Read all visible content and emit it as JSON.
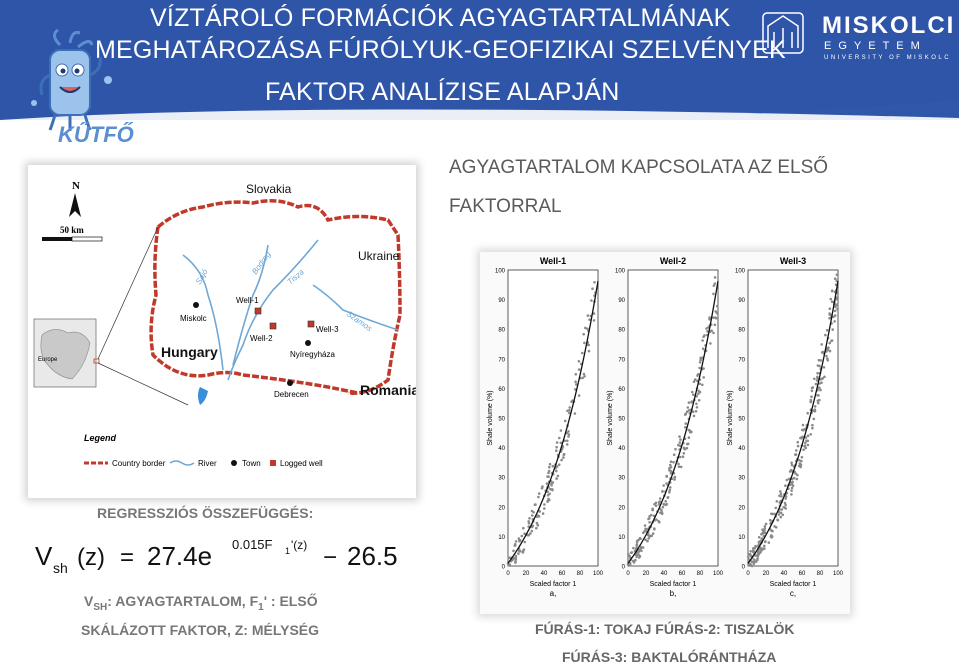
{
  "header": {
    "title_line1": "VÍZTÁROLÓ FORMÁCIÓK AGYAGTARTALMÁNAK",
    "title_line2": "MEGHATÁROZÁSA FÚRÓLYUK-GEOFIZIKAI SZELVÉNYEK",
    "title_line3": "FAKTOR ANALÍZISE ALAPJÁN",
    "logo_left_text": "KŰTFŐ",
    "uni_name": "MISKOLCI",
    "uni_sub": "EGYETEM",
    "uni_sub2": "UNIVERSITY OF MISKOLC"
  },
  "map": {
    "labels": [
      "Slovakia",
      "Ukraine",
      "Hungary",
      "Romania",
      "Miskolc",
      "Well-1",
      "Well-2",
      "Well-3",
      "Nyíregyháza",
      "Debrecen",
      "Europe",
      "Sajó",
      "Bodrog",
      "Tisza",
      "Szamos"
    ],
    "scale_label": "50 km",
    "north_label": "N",
    "legend_title": "Legend",
    "legend_items": [
      "Country border",
      "River",
      "Town",
      "Logged well"
    ],
    "colors": {
      "border": "#c0392b",
      "river": "#6fa8d6",
      "lake": "#3b8fd8"
    }
  },
  "subtitle": {
    "line1": "AGYAGTARTALOM KAPCSOLATA AZ ELSŐ",
    "line2": "FAKTORRAL"
  },
  "plots": {
    "panels": [
      {
        "title": "Well-1",
        "sublabel": "a,"
      },
      {
        "title": "Well-2",
        "sublabel": "b,"
      },
      {
        "title": "Well-3",
        "sublabel": "c,"
      }
    ],
    "ylabel": "Shale volume (%)",
    "xlabel": "Scaled factor 1",
    "yticks": [
      "0",
      "10",
      "20",
      "30",
      "40",
      "50",
      "60",
      "70",
      "80",
      "90",
      "100"
    ],
    "xticks": [
      "0",
      "20",
      "40",
      "60",
      "80",
      "100"
    ]
  },
  "regression": {
    "label": "REGRESSZIÓS ÖSSZEFÜGGÉS:",
    "lhs_v": "V",
    "lhs_sub": "sh",
    "lhs_arg": "(z)",
    "eq": "=",
    "coef": "27.4e",
    "exponent": "0.015F",
    "exponent_sub": "1",
    "exponent_arg": "'(z)",
    "minus": "−",
    "constant": "26.5"
  },
  "legend_text": {
    "line1_v": "V",
    "line1_sub": "SH",
    "line1_rest": ": AGYAGTARTALOM, F",
    "line1_sub2": "1",
    "line1_end": "' : ELSŐ",
    "line2": "SKÁLÁZOTT FAKTOR, Z: MÉLYSÉG"
  },
  "wells": {
    "line1": "FÚRÁS-1: TOKAJ   FÚRÁS-2: TISZALÖK",
    "line2": "FÚRÁS-3: BAKTALÓRÁNTHÁZA"
  }
}
